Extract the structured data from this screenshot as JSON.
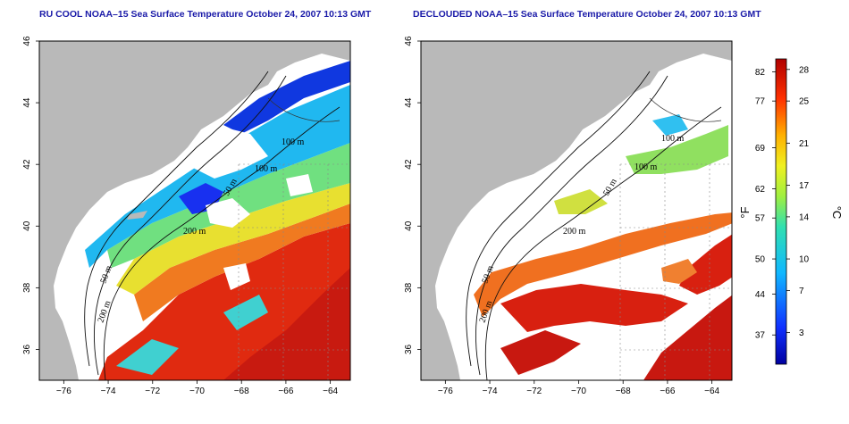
{
  "maps": [
    {
      "title": "RU COOL NOAA–15 Sea Surface Temperature October 24, 2007 10:13 GMT",
      "variant": "cloudy",
      "contour_labels": [
        "100 m",
        "100 m",
        "50 m",
        "200 m",
        "50 m",
        "200 m"
      ]
    },
    {
      "title": "DECLOUDED NOAA–15 Sea Surface Temperature October 24, 2007 10:13 GMT",
      "variant": "declouded",
      "contour_labels": [
        "100 m",
        "100 m",
        "50 m",
        "200 m",
        "50 m",
        "200 m"
      ]
    }
  ],
  "axes": {
    "lon_ticks": [
      "−76",
      "−74",
      "−72",
      "−70",
      "−68",
      "−66",
      "−64"
    ],
    "lat_ticks": [
      "36",
      "38",
      "40",
      "42",
      "44",
      "46"
    ],
    "lon_range": [
      -77.1,
      -63.1
    ],
    "lat_range": [
      35.0,
      46.0
    ]
  },
  "colorbar": {
    "fahrenheit_unit": "°F",
    "celsius_unit": "°C",
    "fahrenheit_ticks": [
      "82",
      "77",
      "69",
      "62",
      "57",
      "50",
      "44",
      "37"
    ],
    "celsius_ticks": [
      "28",
      "25",
      "21",
      "17",
      "14",
      "10",
      "7",
      "3"
    ],
    "celsius_range": [
      0,
      29
    ]
  },
  "colors": {
    "land": "#b9b9b9",
    "cloud": "#ffffff",
    "title": "#1a1aa8"
  }
}
